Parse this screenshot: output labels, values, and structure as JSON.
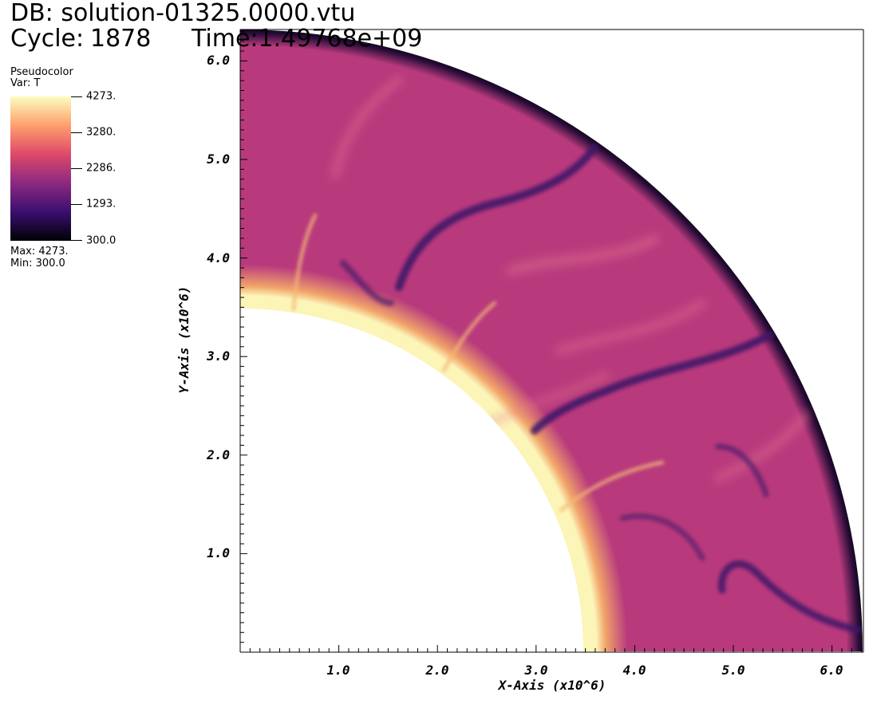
{
  "header": {
    "db_line": "DB: solution-01325.0000.vtu",
    "cycle_label": "Cycle:",
    "cycle_value": "1878",
    "time_text": "Time:1.49768e+09"
  },
  "legend": {
    "plot_type": "Pseudocolor",
    "var_label": "Var: T",
    "ticks": [
      "4273.",
      "3280.",
      "2286.",
      "1293.",
      "300.0"
    ],
    "max_text": "Max:  4273.",
    "min_text": "Min:  300.0",
    "colormap": [
      "#000004",
      "#3b0f70",
      "#8c2981",
      "#de4968",
      "#fe9f6d",
      "#fcfdbf"
    ]
  },
  "axes": {
    "x_title": "X-Axis (x10^6)",
    "y_title": "Y-Axis (x10^6)",
    "x_ticks": [
      "1.0",
      "2.0",
      "3.0",
      "4.0",
      "5.0",
      "6.0"
    ],
    "y_ticks": [
      "1.0",
      "2.0",
      "3.0",
      "4.0",
      "5.0",
      "6.0"
    ]
  },
  "colors": {
    "mantle": "#b83a7d",
    "inner_hot": "#fcf5b8",
    "outer_cold": "#08040f",
    "plume": "#3a1467"
  }
}
